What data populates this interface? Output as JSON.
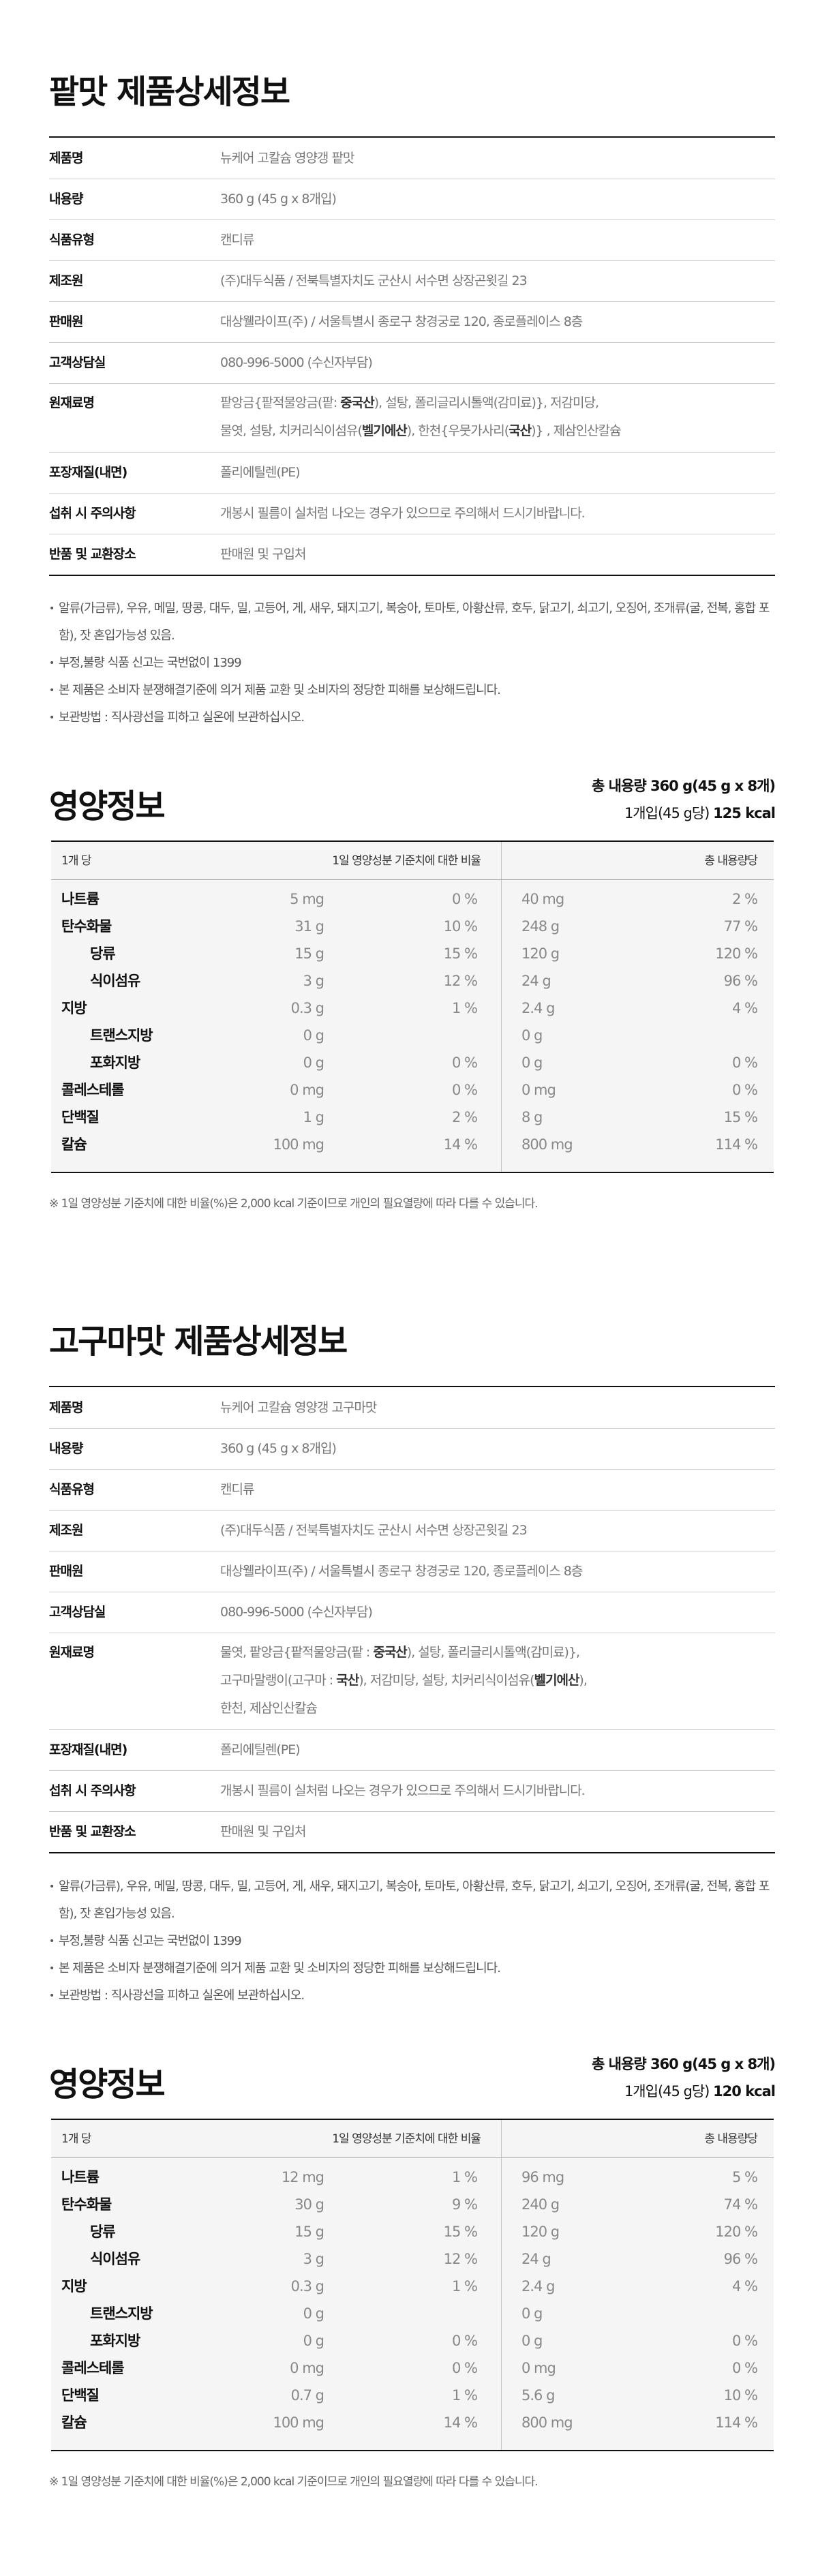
{
  "sections": [
    {
      "title": "팥맛 제품상세정보",
      "info": [
        {
          "label": "제품명",
          "lines": [
            [
              {
                "t": "뉴케어 고칼슘 영양갱 팥맛"
              }
            ]
          ]
        },
        {
          "label": "내용량",
          "lines": [
            [
              {
                "t": "360 g (45 g x 8개입)"
              }
            ]
          ]
        },
        {
          "label": "식품유형",
          "lines": [
            [
              {
                "t": "캔디류"
              }
            ]
          ]
        },
        {
          "label": "제조원",
          "lines": [
            [
              {
                "t": "(주)대두식품 / 전북특별자치도 군산시 서수면 상장곤윗길 23"
              }
            ]
          ]
        },
        {
          "label": "판매원",
          "lines": [
            [
              {
                "t": "대상웰라이프(주) / 서울특별시 종로구 창경궁로 120, 종로플레이스 8층"
              }
            ]
          ]
        },
        {
          "label": "고객상담실",
          "lines": [
            [
              {
                "t": "080-996-5000 (수신자부담)"
              }
            ]
          ]
        },
        {
          "label": "원재료명",
          "lines": [
            [
              {
                "t": "팥앙금{팥적물앙금(팥: "
              },
              {
                "t": "중국산",
                "b": true
              },
              {
                "t": "), 설탕, 폴리글리시톨액(감미료)}, 저감미당,"
              }
            ],
            [
              {
                "t": "물엿, 설탕, 치커리식이섬유("
              },
              {
                "t": "벨기에산",
                "b": true
              },
              {
                "t": "), 한천{우뭇가사리("
              },
              {
                "t": "국산",
                "b": true
              },
              {
                "t": ")} , 제삼인산칼슘"
              }
            ]
          ]
        },
        {
          "label": "포장재질(내면)",
          "lines": [
            [
              {
                "t": "폴리에틸렌(PE)"
              }
            ]
          ]
        },
        {
          "label": "섭취 시 주의사항",
          "lines": [
            [
              {
                "t": "개봉시 필름이 실처럼 나오는 경우가 있으므로 주의해서 드시기바랍니다."
              }
            ]
          ]
        },
        {
          "label": "반품 및 교환장소",
          "lines": [
            [
              {
                "t": "판매원 및 구입처"
              }
            ]
          ]
        }
      ],
      "notes": [
        "알류(가금류), 우유, 메밀, 땅콩, 대두, 밀, 고등어, 게, 새우, 돼지고기, 복숭아, 토마토, 아황산류, 호두, 닭고기, 쇠고기, 오징어, 조개류(굴, 전복, 홍합 포함), 잣 혼입가능성 있음.",
        "부정,불량 식품 신고는 국번없이 1399",
        "본 제품은 소비자 분쟁해결기준에 의거 제품 교환 및 소비자의 정당한 피해를 보상해드립니다.",
        "보관방법 : 직사광선을 피하고 실온에 보관하십시오."
      ],
      "nutrition": {
        "title": "영양정보",
        "total_line": "총 내용량 360 g(45 g x 8개)",
        "per_unit_label": "1개입(45 g당)",
        "kcal": "125 kcal",
        "headers": {
          "per": "1개 당",
          "daily": "1일 영양성분 기준치에 대한 비율",
          "total": "총 내용량당"
        },
        "rows": [
          {
            "name": "나트륨",
            "amount": "5 mg",
            "pct": "0 %",
            "total_amount": "40 mg",
            "total_pct": "2 %",
            "indent": false
          },
          {
            "name": "탄수화물",
            "amount": "31 g",
            "pct": "10 %",
            "total_amount": "248 g",
            "total_pct": "77 %",
            "indent": false
          },
          {
            "name": "당류",
            "amount": "15 g",
            "pct": "15 %",
            "total_amount": "120 g",
            "total_pct": "120 %",
            "indent": true
          },
          {
            "name": "식이섬유",
            "amount": "3 g",
            "pct": "12 %",
            "total_amount": "24 g",
            "total_pct": "96 %",
            "indent": true
          },
          {
            "name": "지방",
            "amount": "0.3 g",
            "pct": "1 %",
            "total_amount": "2.4 g",
            "total_pct": "4 %",
            "indent": false
          },
          {
            "name": "트랜스지방",
            "amount": "0 g",
            "pct": "",
            "total_amount": "0 g",
            "total_pct": "",
            "indent": true
          },
          {
            "name": "포화지방",
            "amount": "0 g",
            "pct": "0 %",
            "total_amount": "0 g",
            "total_pct": "0 %",
            "indent": true
          },
          {
            "name": "콜레스테롤",
            "amount": "0 mg",
            "pct": "0 %",
            "total_amount": "0 mg",
            "total_pct": "0 %",
            "indent": false
          },
          {
            "name": "단백질",
            "amount": "1 g",
            "pct": "2 %",
            "total_amount": "8 g",
            "total_pct": "15 %",
            "indent": false
          },
          {
            "name": "칼슘",
            "amount": "100 mg",
            "pct": "14 %",
            "total_amount": "800 mg",
            "total_pct": "114 %",
            "indent": false
          }
        ],
        "footnote": "※ 1일 영양성분 기준치에 대한 비율(%)은 2,000 kcal 기준이므로 개인의 필요열량에 따라 다를 수 있습니다."
      }
    },
    {
      "title": "고구마맛 제품상세정보",
      "info": [
        {
          "label": "제품명",
          "lines": [
            [
              {
                "t": "뉴케어 고칼슘 영양갱 고구마맛"
              }
            ]
          ]
        },
        {
          "label": "내용량",
          "lines": [
            [
              {
                "t": "360 g (45 g x 8개입)"
              }
            ]
          ]
        },
        {
          "label": "식품유형",
          "lines": [
            [
              {
                "t": "캔디류"
              }
            ]
          ]
        },
        {
          "label": "제조원",
          "lines": [
            [
              {
                "t": "(주)대두식품 / 전북특별자치도 군산시 서수면 상장곤윗길 23"
              }
            ]
          ]
        },
        {
          "label": "판매원",
          "lines": [
            [
              {
                "t": "대상웰라이프(주) / 서울특별시 종로구 창경궁로 120, 종로플레이스 8층"
              }
            ]
          ]
        },
        {
          "label": "고객상담실",
          "lines": [
            [
              {
                "t": "080-996-5000 (수신자부담)"
              }
            ]
          ]
        },
        {
          "label": "원재료명",
          "lines": [
            [
              {
                "t": "물엿, 팥앙금{팥적물앙금(팥 : "
              },
              {
                "t": "중국산",
                "b": true
              },
              {
                "t": "), 설탕, 폴리글리시톨액(감미료)},"
              }
            ],
            [
              {
                "t": "고구마말랭이(고구마 : "
              },
              {
                "t": "국산",
                "b": true
              },
              {
                "t": "), 저감미당, 설탕, 치커리식이섬유("
              },
              {
                "t": "벨기에산",
                "b": true
              },
              {
                "t": "),"
              }
            ],
            [
              {
                "t": "한천, 제삼인산칼슘"
              }
            ]
          ]
        },
        {
          "label": "포장재질(내면)",
          "lines": [
            [
              {
                "t": "폴리에틸렌(PE)"
              }
            ]
          ]
        },
        {
          "label": "섭취 시 주의사항",
          "lines": [
            [
              {
                "t": "개봉시 필름이 실처럼 나오는 경우가 있으므로 주의해서 드시기바랍니다."
              }
            ]
          ]
        },
        {
          "label": "반품 및 교환장소",
          "lines": [
            [
              {
                "t": "판매원 및 구입처"
              }
            ]
          ]
        }
      ],
      "notes": [
        "알류(가금류), 우유, 메밀, 땅콩, 대두, 밀, 고등어, 게, 새우, 돼지고기, 복숭아, 토마토, 아황산류, 호두, 닭고기, 쇠고기, 오징어, 조개류(굴, 전복, 홍합 포함), 잣 혼입가능성 있음.",
        "부정,불량 식품 신고는 국번없이 1399",
        "본 제품은 소비자 분쟁해결기준에 의거 제품 교환 및 소비자의 정당한 피해를 보상해드립니다.",
        "보관방법 : 직사광선을 피하고 실온에 보관하십시오."
      ],
      "nutrition": {
        "title": "영양정보",
        "total_line": "총 내용량 360 g(45 g x 8개)",
        "per_unit_label": "1개입(45 g당)",
        "kcal": "120 kcal",
        "headers": {
          "per": "1개 당",
          "daily": "1일 영양성분 기준치에 대한 비율",
          "total": "총 내용량당"
        },
        "rows": [
          {
            "name": "나트륨",
            "amount": "12 mg",
            "pct": "1 %",
            "total_amount": "96 mg",
            "total_pct": "5 %",
            "indent": false
          },
          {
            "name": "탄수화물",
            "amount": "30 g",
            "pct": "9 %",
            "total_amount": "240 g",
            "total_pct": "74 %",
            "indent": false
          },
          {
            "name": "당류",
            "amount": "15 g",
            "pct": "15 %",
            "total_amount": "120 g",
            "total_pct": "120 %",
            "indent": true
          },
          {
            "name": "식이섬유",
            "amount": "3 g",
            "pct": "12 %",
            "total_amount": "24 g",
            "total_pct": "96 %",
            "indent": true
          },
          {
            "name": "지방",
            "amount": "0.3 g",
            "pct": "1 %",
            "total_amount": "2.4 g",
            "total_pct": "4 %",
            "indent": false
          },
          {
            "name": "트랜스지방",
            "amount": "0 g",
            "pct": "",
            "total_amount": "0 g",
            "total_pct": "",
            "indent": true
          },
          {
            "name": "포화지방",
            "amount": "0 g",
            "pct": "0 %",
            "total_amount": "0 g",
            "total_pct": "0 %",
            "indent": true
          },
          {
            "name": "콜레스테롤",
            "amount": "0 mg",
            "pct": "0 %",
            "total_amount": "0 mg",
            "total_pct": "0 %",
            "indent": false
          },
          {
            "name": "단백질",
            "amount": "0.7 g",
            "pct": "1 %",
            "total_amount": "5.6 g",
            "total_pct": "10 %",
            "indent": false
          },
          {
            "name": "칼슘",
            "amount": "100 mg",
            "pct": "14 %",
            "total_amount": "800 mg",
            "total_pct": "114 %",
            "indent": false
          }
        ],
        "footnote": "※ 1일 영양성분 기준치에 대한 비율(%)은 2,000 kcal 기준이므로 개인의 필요열량에 따라 다를 수 있습니다."
      }
    }
  ]
}
